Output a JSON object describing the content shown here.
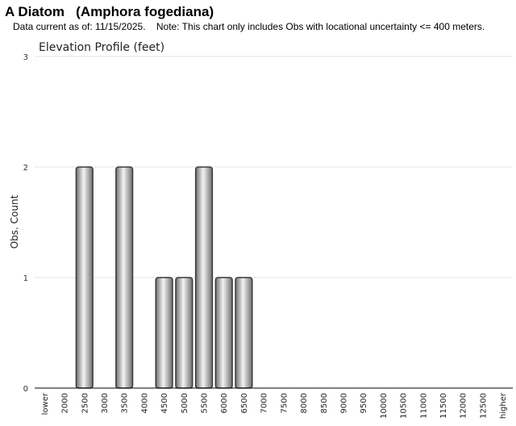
{
  "header": {
    "title": "A Diatom   (Amphora fogediana)",
    "subtitle": "Data current as of: 11/15/2025.    Note: This chart only includes Obs with locational uncertainty <= 400 meters."
  },
  "chart_data": {
    "type": "bar",
    "title": "Elevation Profile (feet)",
    "xlabel": "",
    "ylabel": "Obs. Count",
    "ylim": [
      0,
      3
    ],
    "yticks": [
      0,
      1,
      2,
      3
    ],
    "grid": true,
    "categories": [
      "lower",
      "2000",
      "2500",
      "3000",
      "3500",
      "4000",
      "4500",
      "5000",
      "5500",
      "6000",
      "6500",
      "7000",
      "7500",
      "8000",
      "8500",
      "9000",
      "9500",
      "10000",
      "10500",
      "11000",
      "11500",
      "12000",
      "12500",
      "higher"
    ],
    "values": [
      0,
      0,
      2,
      0,
      2,
      0,
      1,
      1,
      2,
      1,
      1,
      0,
      0,
      0,
      0,
      0,
      0,
      0,
      0,
      0,
      0,
      0,
      0,
      0
    ],
    "colors": {
      "bar_dark": "#6e6e6e",
      "bar_light": "#f4f4f4",
      "bar_stroke": "#3a3a3a",
      "grid": "#e3e3e3",
      "axis": "#000000"
    }
  }
}
